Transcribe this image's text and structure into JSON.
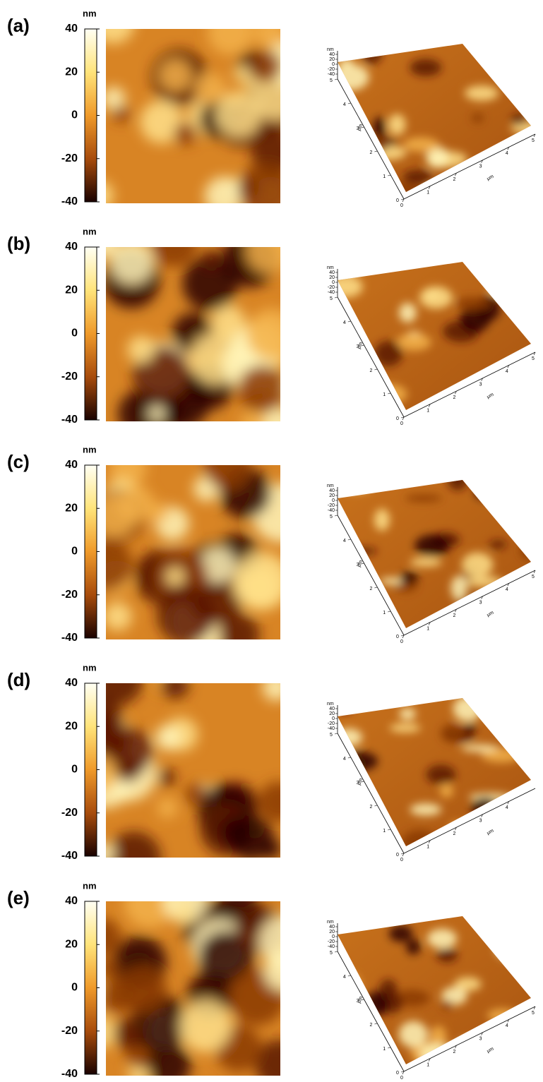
{
  "panels": [
    {
      "label": "(a)",
      "colorbar": {
        "unit": "nm",
        "ticks": [
          40,
          20,
          0,
          -20,
          -40
        ]
      },
      "surface": {
        "z_unit": "nm",
        "z_ticks": [
          40,
          20,
          0,
          -20,
          -40
        ],
        "x_unit": "μm",
        "x_ticks": [
          0,
          1,
          2,
          3,
          4,
          5
        ],
        "y_unit": "μm",
        "y_ticks": [
          0,
          1,
          2,
          3,
          4,
          5
        ]
      }
    },
    {
      "label": "(b)",
      "colorbar": {
        "unit": "nm",
        "ticks": [
          40,
          20,
          0,
          -20,
          -40
        ]
      },
      "surface": {
        "z_unit": "nm",
        "z_ticks": [
          40,
          20,
          0,
          -20,
          -40
        ],
        "x_unit": "μm",
        "x_ticks": [
          0,
          1,
          2,
          3,
          4,
          5
        ],
        "y_unit": "μm",
        "y_ticks": [
          0,
          1,
          2,
          3,
          4,
          5
        ]
      }
    },
    {
      "label": "(c)",
      "colorbar": {
        "unit": "nm",
        "ticks": [
          40,
          20,
          0,
          -20,
          -40
        ]
      },
      "surface": {
        "z_unit": "nm",
        "z_ticks": [
          40,
          20,
          0,
          -20,
          -40
        ],
        "x_unit": "μm",
        "x_ticks": [
          0,
          1,
          2,
          3,
          4,
          5
        ],
        "y_unit": "μm",
        "y_ticks": [
          0,
          1,
          2,
          3,
          4,
          5
        ]
      }
    },
    {
      "label": "(d)",
      "colorbar": {
        "unit": "nm",
        "ticks": [
          40,
          20,
          0,
          -20,
          -40
        ]
      },
      "surface": {
        "z_unit": "nm",
        "z_ticks": [
          40,
          20,
          0,
          -20,
          -40
        ],
        "x_unit": "μm",
        "x_ticks": [
          0,
          1,
          2,
          3,
          4
        ],
        "y_unit": "μm",
        "y_ticks": [
          0,
          1,
          2,
          3,
          4,
          5
        ]
      }
    },
    {
      "label": "(e)",
      "colorbar": {
        "unit": "nm",
        "ticks": [
          40,
          20,
          0,
          -20,
          -40
        ]
      },
      "surface": {
        "z_unit": "nm",
        "z_ticks": [
          40,
          20,
          0,
          -20,
          -40
        ],
        "x_unit": "μm",
        "x_ticks": [
          0,
          1,
          2,
          3,
          4,
          5
        ],
        "y_unit": "μm",
        "y_ticks": [
          0,
          1,
          2,
          3,
          4,
          5
        ]
      }
    }
  ]
}
